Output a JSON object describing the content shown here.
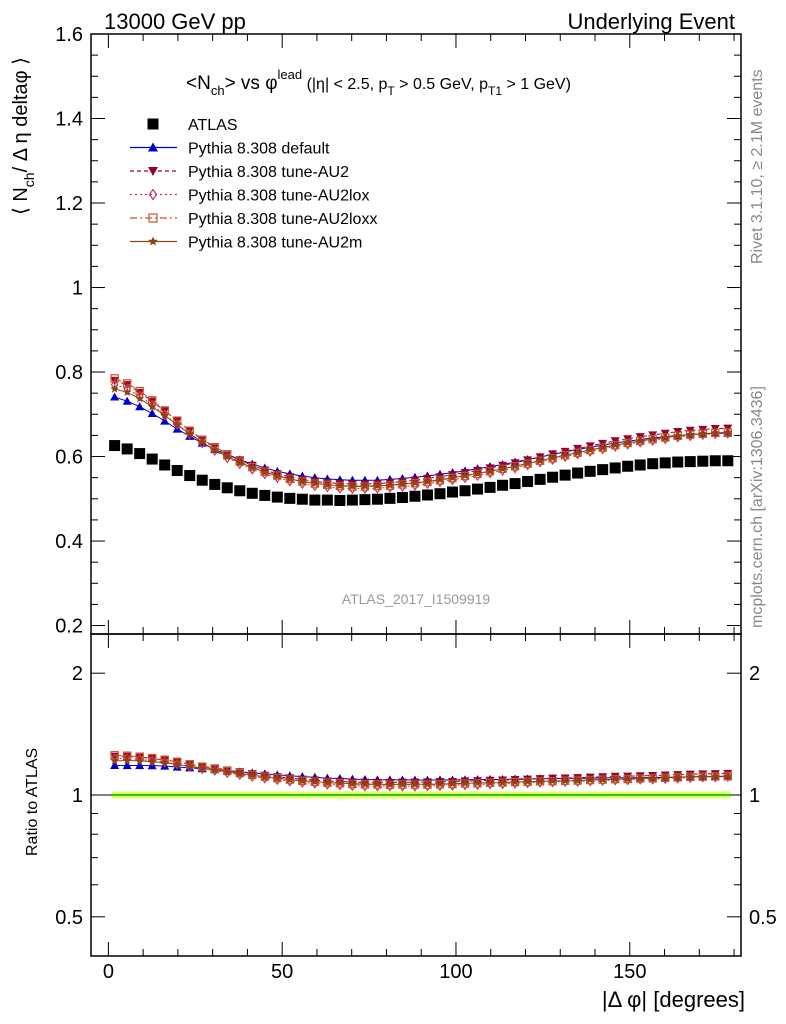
{
  "header": {
    "left": "13000 GeV pp",
    "right": "Underlying Event"
  },
  "side_labels": {
    "rivet": "Rivet 3.1.10, ≥ 2.1M events",
    "mcplots": "mcplots.cern.ch [arXiv:1306.3436]"
  },
  "watermark": "ATLAS_2017_I1509919",
  "title": {
    "part1": "<N",
    "sub1": "ch",
    "part2": "> vs φ",
    "sup1": "lead",
    "part3": " (|η| < 2.5, p",
    "sub2": "T",
    "part4": " > 0.5 GeV, p",
    "sub3": "T1",
    "part5": " > 1 GeV)"
  },
  "axes": {
    "ylabel_main": "⟨ N",
    "ylabel_main_sub": "ch",
    "ylabel_main_rest": "/ Δ η deltaφ ⟩",
    "ylabel_ratio": "Ratio to ATLAS",
    "xlabel": "|Δ φ| [degrees]",
    "main_yticks": [
      "0.2",
      "0.4",
      "0.6",
      "0.8",
      "1",
      "1.2",
      "1.4",
      "1.6"
    ],
    "ratio_yticks": [
      "0.5",
      "1",
      "2"
    ],
    "xticks": [
      "0",
      "50",
      "100",
      "150"
    ]
  },
  "chart_data": {
    "type": "scatter",
    "x_unit": "degrees",
    "xlim": [
      -5,
      182
    ],
    "main": {
      "ylim": [
        0.18,
        1.6
      ],
      "yscale": "linear"
    },
    "ratio": {
      "ylim": [
        0.4,
        2.5
      ],
      "yscale": "log"
    },
    "x": [
      1.8,
      5.4,
      9.0,
      12.6,
      16.2,
      19.8,
      23.4,
      27.0,
      30.6,
      34.2,
      37.8,
      41.4,
      45.0,
      48.6,
      52.2,
      55.8,
      59.4,
      63.0,
      66.6,
      70.2,
      73.8,
      77.4,
      81.0,
      84.6,
      88.2,
      91.8,
      95.4,
      99.0,
      102.6,
      106.2,
      109.8,
      113.4,
      117.0,
      120.6,
      124.2,
      127.8,
      131.4,
      135.0,
      138.6,
      142.2,
      145.8,
      149.4,
      153.0,
      156.6,
      160.2,
      163.8,
      167.4,
      171.0,
      174.6,
      178.2
    ],
    "series": [
      {
        "name": "ATLAS",
        "color": "#000000",
        "marker": "square",
        "values": [
          0.626,
          0.618,
          0.607,
          0.594,
          0.58,
          0.567,
          0.555,
          0.544,
          0.534,
          0.526,
          0.519,
          0.513,
          0.508,
          0.504,
          0.501,
          0.499,
          0.497,
          0.497,
          0.496,
          0.497,
          0.498,
          0.499,
          0.501,
          0.503,
          0.506,
          0.509,
          0.512,
          0.516,
          0.519,
          0.523,
          0.527,
          0.532,
          0.536,
          0.541,
          0.546,
          0.551,
          0.556,
          0.561,
          0.565,
          0.569,
          0.573,
          0.577,
          0.58,
          0.583,
          0.585,
          0.587,
          0.588,
          0.589,
          0.59,
          0.59
        ]
      },
      {
        "name": "Pythia 8.308 default",
        "color": "#0000cc",
        "marker": "triangle-up",
        "values": [
          0.741,
          0.731,
          0.718,
          0.702,
          0.684,
          0.665,
          0.648,
          0.632,
          0.617,
          0.604,
          0.592,
          0.582,
          0.573,
          0.565,
          0.559,
          0.554,
          0.55,
          0.547,
          0.545,
          0.544,
          0.544,
          0.544,
          0.546,
          0.548,
          0.551,
          0.554,
          0.558,
          0.562,
          0.566,
          0.571,
          0.576,
          0.581,
          0.587,
          0.593,
          0.599,
          0.605,
          0.611,
          0.617,
          0.622,
          0.627,
          0.632,
          0.636,
          0.64,
          0.644,
          0.647,
          0.65,
          0.652,
          0.654,
          0.655,
          0.655
        ]
      },
      {
        "name": "Pythia 8.308 tune-AU2",
        "color": "#990033",
        "marker": "triangle-down",
        "values": [
          0.78,
          0.77,
          0.752,
          0.731,
          0.708,
          0.685,
          0.662,
          0.641,
          0.623,
          0.606,
          0.592,
          0.579,
          0.568,
          0.559,
          0.552,
          0.546,
          0.541,
          0.538,
          0.536,
          0.535,
          0.535,
          0.536,
          0.538,
          0.541,
          0.544,
          0.548,
          0.552,
          0.557,
          0.562,
          0.567,
          0.573,
          0.579,
          0.585,
          0.592,
          0.599,
          0.606,
          0.612,
          0.619,
          0.625,
          0.631,
          0.637,
          0.642,
          0.647,
          0.651,
          0.655,
          0.659,
          0.662,
          0.664,
          0.666,
          0.667
        ]
      },
      {
        "name": "Pythia 8.308 tune-AU2lox",
        "color": "#cc3366",
        "marker": "diamond-open",
        "values": [
          0.77,
          0.76,
          0.743,
          0.722,
          0.699,
          0.676,
          0.653,
          0.632,
          0.614,
          0.597,
          0.583,
          0.57,
          0.559,
          0.55,
          0.542,
          0.536,
          0.531,
          0.528,
          0.525,
          0.524,
          0.524,
          0.525,
          0.527,
          0.529,
          0.532,
          0.536,
          0.54,
          0.545,
          0.55,
          0.555,
          0.561,
          0.567,
          0.573,
          0.58,
          0.587,
          0.593,
          0.6,
          0.606,
          0.612,
          0.618,
          0.624,
          0.629,
          0.634,
          0.638,
          0.642,
          0.646,
          0.649,
          0.652,
          0.654,
          0.655
        ]
      },
      {
        "name": "Pythia 8.308 tune-AU2loxx",
        "color": "#cc5522",
        "marker": "square-open",
        "values": [
          0.785,
          0.773,
          0.755,
          0.733,
          0.709,
          0.685,
          0.661,
          0.639,
          0.62,
          0.603,
          0.588,
          0.575,
          0.564,
          0.555,
          0.547,
          0.541,
          0.536,
          0.533,
          0.53,
          0.529,
          0.529,
          0.53,
          0.531,
          0.534,
          0.537,
          0.54,
          0.544,
          0.549,
          0.554,
          0.559,
          0.565,
          0.571,
          0.577,
          0.583,
          0.59,
          0.596,
          0.603,
          0.609,
          0.615,
          0.621,
          0.627,
          0.632,
          0.637,
          0.641,
          0.645,
          0.649,
          0.652,
          0.654,
          0.656,
          0.657
        ]
      },
      {
        "name": "Pythia 8.308 tune-AU2m",
        "color": "#8b4513",
        "marker": "star",
        "values": [
          0.76,
          0.752,
          0.737,
          0.718,
          0.697,
          0.675,
          0.654,
          0.634,
          0.616,
          0.6,
          0.586,
          0.574,
          0.563,
          0.554,
          0.547,
          0.541,
          0.537,
          0.533,
          0.531,
          0.53,
          0.53,
          0.531,
          0.532,
          0.535,
          0.538,
          0.541,
          0.545,
          0.55,
          0.555,
          0.56,
          0.565,
          0.571,
          0.577,
          0.584,
          0.59,
          0.597,
          0.603,
          0.609,
          0.616,
          0.621,
          0.627,
          0.632,
          0.637,
          0.641,
          0.645,
          0.649,
          0.652,
          0.654,
          0.656,
          0.657
        ]
      }
    ],
    "ratio_reference": {
      "value": 1.0,
      "band_color": "#ddff66",
      "line_color": "#00aa00"
    }
  }
}
